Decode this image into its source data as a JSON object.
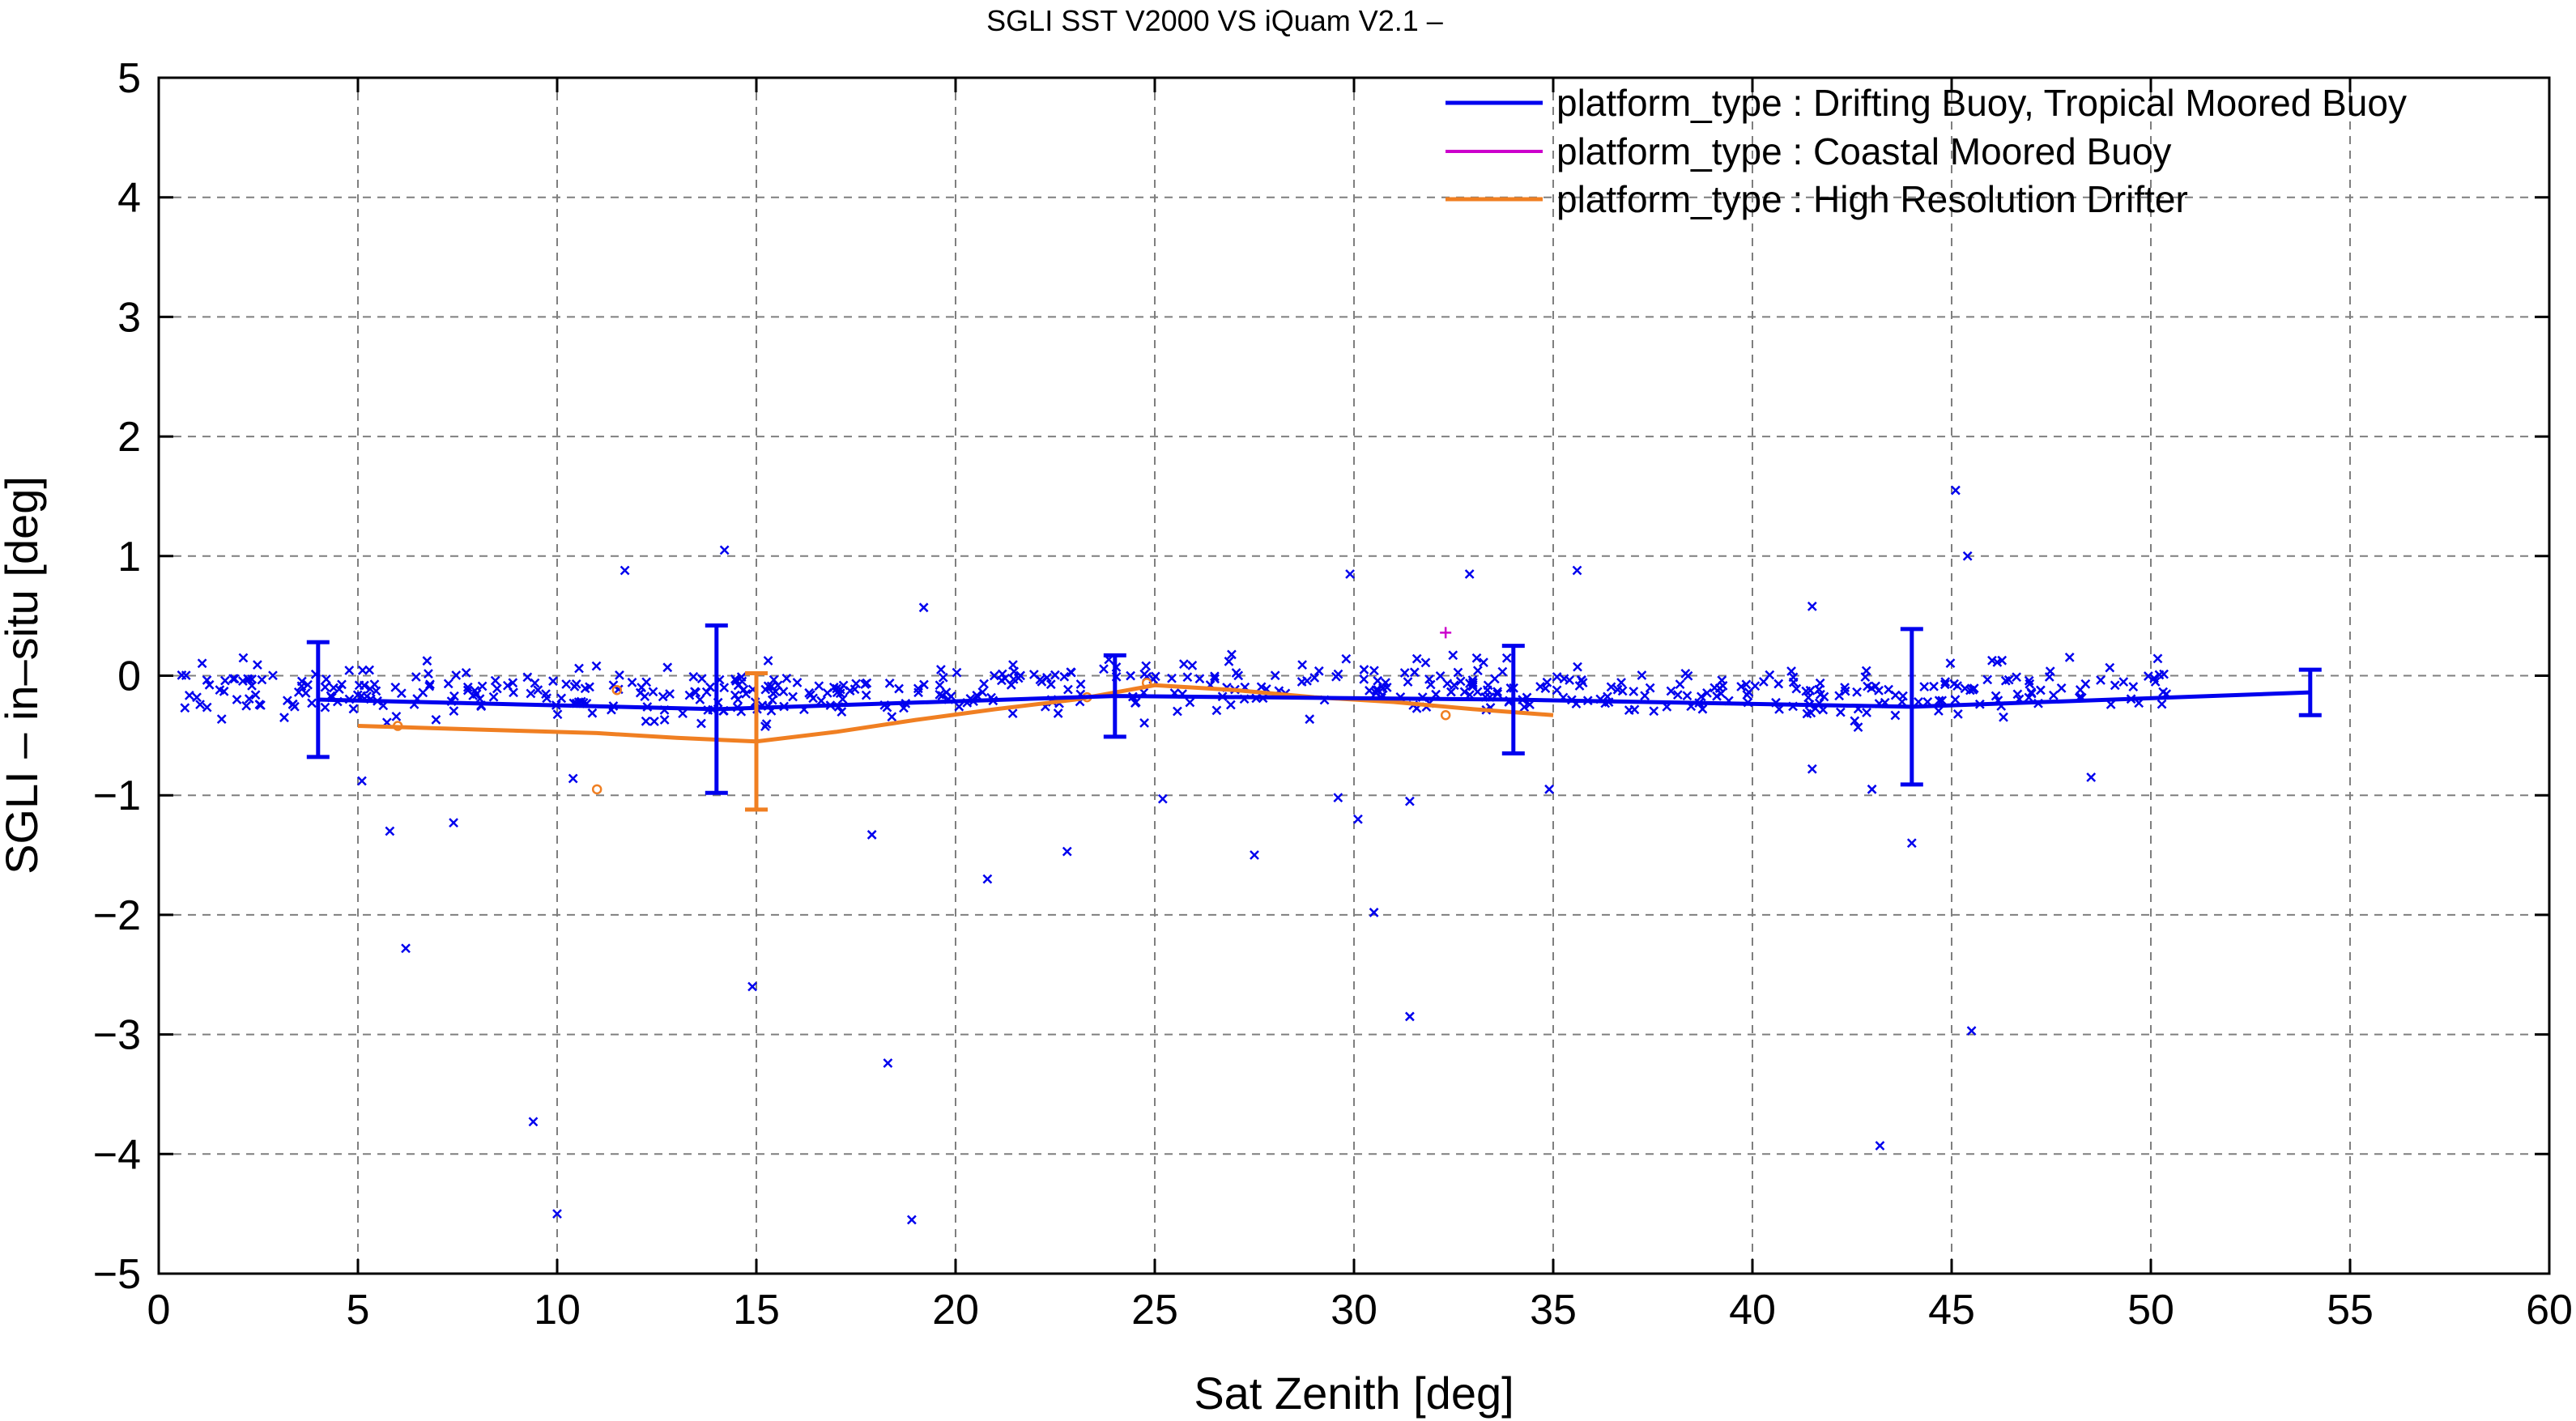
{
  "chart_data": {
    "type": "scatter",
    "title": "SGLI SST V2000 VS iQuam V2.1  –",
    "xlabel": "Sat Zenith [deg]",
    "ylabel": "SGLI – in–situ [deg]",
    "xlim": [
      0,
      60
    ],
    "ylim": [
      -5,
      5
    ],
    "xticks": [
      0,
      5,
      10,
      15,
      20,
      25,
      30,
      35,
      40,
      45,
      50,
      55,
      60
    ],
    "yticks": [
      -5,
      -4,
      -3,
      -2,
      -1,
      0,
      1,
      2,
      3,
      4,
      5
    ],
    "ytick_labels": [
      "−5",
      "−4",
      "−3",
      "−2",
      "−1",
      "0",
      "1",
      "2",
      "3",
      "4",
      "5"
    ],
    "grid": true,
    "legend_position": "top-right",
    "series": [
      {
        "name": "platform_type : Drifting Buoy, Tropical Moored Buoy",
        "color": "#0000ee",
        "marker": "x",
        "mean_line": {
          "x": [
            4,
            14,
            24,
            34,
            44,
            54
          ],
          "y": [
            -0.2,
            -0.28,
            -0.17,
            -0.2,
            -0.26,
            -0.14
          ],
          "err": [
            0.48,
            0.7,
            0.34,
            0.45,
            0.65,
            0.19
          ]
        },
        "outliers": [
          [
            14.2,
            1.05
          ],
          [
            11.7,
            0.88
          ],
          [
            19.2,
            0.57
          ],
          [
            29.9,
            0.85
          ],
          [
            32.9,
            0.85
          ],
          [
            35.6,
            0.88
          ],
          [
            45.1,
            1.55
          ],
          [
            45.4,
            1.0
          ],
          [
            41.5,
            0.58
          ],
          [
            5.1,
            -0.88
          ],
          [
            5.8,
            -1.3
          ],
          [
            6.2,
            -2.28
          ],
          [
            7.4,
            -1.23
          ],
          [
            9.4,
            -3.73
          ],
          [
            10.0,
            -4.5
          ],
          [
            10.4,
            -0.86
          ],
          [
            14.9,
            -2.6
          ],
          [
            17.9,
            -1.33
          ],
          [
            18.3,
            -3.24
          ],
          [
            18.9,
            -4.55
          ],
          [
            20.8,
            -1.7
          ],
          [
            22.8,
            -1.47
          ],
          [
            25.2,
            -1.03
          ],
          [
            27.5,
            -1.5
          ],
          [
            29.6,
            -1.02
          ],
          [
            30.1,
            -1.2
          ],
          [
            30.5,
            -1.98
          ],
          [
            31.4,
            -2.85
          ],
          [
            31.4,
            -1.05
          ],
          [
            34.9,
            -0.95
          ],
          [
            43.0,
            -0.95
          ],
          [
            43.2,
            -3.93
          ],
          [
            44.0,
            -1.4
          ],
          [
            45.5,
            -2.97
          ],
          [
            48.5,
            -0.85
          ],
          [
            41.5,
            -0.78
          ]
        ]
      },
      {
        "name": "platform_type : Coastal Moored Buoy",
        "color": "#cc00cc",
        "marker": "+",
        "points": [
          [
            32.3,
            0.36
          ]
        ]
      },
      {
        "name": "platform_type : High Resolution Drifter",
        "color": "#f07f22",
        "marker": "o",
        "mean_line": {
          "x": [
            5,
            8,
            11,
            13,
            15,
            17,
            19,
            21,
            23,
            25,
            27,
            29,
            31,
            33,
            35
          ],
          "y": [
            -0.42,
            -0.45,
            -0.48,
            -0.52,
            -0.55,
            -0.47,
            -0.37,
            -0.28,
            -0.2,
            -0.08,
            -0.12,
            -0.18,
            -0.22,
            -0.28,
            -0.33
          ]
        },
        "errorbar": {
          "x": 15,
          "y": -0.55,
          "err": 0.57
        },
        "points": [
          [
            11.0,
            -0.95
          ],
          [
            6.0,
            -0.42
          ],
          [
            11.5,
            -0.12
          ],
          [
            23.3,
            -0.18
          ],
          [
            24.8,
            -0.06
          ],
          [
            32.3,
            -0.33
          ]
        ]
      }
    ]
  }
}
